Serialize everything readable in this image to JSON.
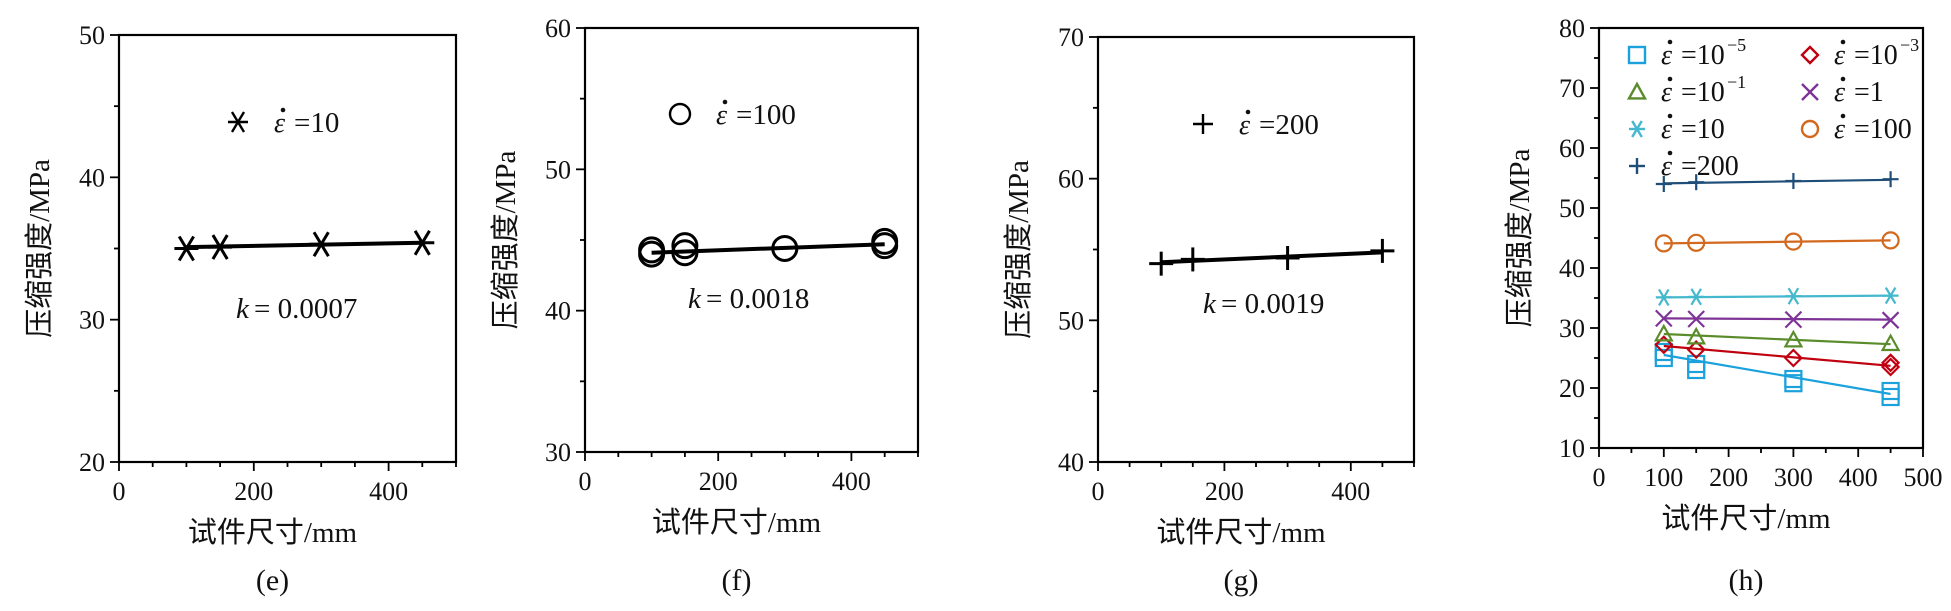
{
  "chart_data": [
    {
      "type": "scatter",
      "panel_label": "(e)",
      "xlabel": "试件尺寸/mm",
      "ylabel": "压缩强度/MPa",
      "xlim": [
        0,
        500
      ],
      "ylim": [
        20,
        50
      ],
      "xticks": [
        0,
        200,
        400
      ],
      "yticks": [
        20,
        30,
        40,
        50
      ],
      "series": [
        {
          "name": "ε̇=10",
          "marker": "asterisk",
          "color": "#000000",
          "x": [
            100,
            150,
            300,
            450
          ],
          "y": [
            35.0,
            35.1,
            35.3,
            35.4
          ],
          "fit": {
            "x": [
              100,
              450
            ],
            "y": [
              35.1,
              35.4
            ]
          }
        }
      ],
      "legend": {
        "marker": "asterisk",
        "label": "=10"
      },
      "annotation": {
        "k_label": "k",
        "k_value": "= 0.0007"
      }
    },
    {
      "type": "scatter",
      "panel_label": "(f)",
      "xlabel": "试件尺寸/mm",
      "ylabel": "压缩强度/MPa",
      "xlim": [
        0,
        500
      ],
      "ylim": [
        30,
        60
      ],
      "xticks": [
        0,
        200,
        400
      ],
      "yticks": [
        30,
        40,
        50,
        60
      ],
      "series": [
        {
          "name": "ε̇=100",
          "marker": "circle",
          "color": "#000000",
          "x": [
            100,
            100,
            150,
            150,
            300,
            450,
            450
          ],
          "y": [
            44.0,
            44.3,
            44.1,
            44.6,
            44.4,
            44.6,
            44.9
          ],
          "fit": {
            "x": [
              100,
              450
            ],
            "y": [
              44.1,
              44.7
            ]
          }
        }
      ],
      "legend": {
        "marker": "circle",
        "label": "=100"
      },
      "annotation": {
        "k_label": "k",
        "k_value": "= 0.0018"
      }
    },
    {
      "type": "scatter",
      "panel_label": "(g)",
      "xlabel": "试件尺寸/mm",
      "ylabel": "压缩强度/MPa",
      "xlim": [
        0,
        500
      ],
      "ylim": [
        40,
        70
      ],
      "xticks": [
        0,
        200,
        400
      ],
      "yticks": [
        40,
        50,
        60,
        70
      ],
      "series": [
        {
          "name": "ε̇=200",
          "marker": "plus",
          "color": "#000000",
          "x": [
            100,
            150,
            300,
            450
          ],
          "y": [
            54.0,
            54.3,
            54.4,
            54.9
          ],
          "fit": {
            "x": [
              100,
              450
            ],
            "y": [
              54.1,
              54.8
            ]
          }
        }
      ],
      "legend": {
        "marker": "plus",
        "label": "=200"
      },
      "annotation": {
        "k_label": "k",
        "k_value": "= 0.0019"
      }
    },
    {
      "type": "scatter",
      "panel_label": "(h)",
      "xlabel": "试件尺寸/mm",
      "ylabel": "压缩强度/MPa",
      "xlim": [
        0,
        500
      ],
      "ylim": [
        10,
        80
      ],
      "xticks": [
        0,
        100,
        200,
        300,
        400,
        500
      ],
      "yticks": [
        10,
        20,
        30,
        40,
        50,
        60,
        70,
        80
      ],
      "series": [
        {
          "name": "ε̇=10⁻⁵",
          "label": "=10",
          "exp": "−5",
          "marker": "square",
          "color": "#1ba1dc",
          "x": [
            100,
            100,
            150,
            150,
            300,
            300,
            450,
            450
          ],
          "y": [
            25.0,
            26.0,
            23.0,
            24.0,
            20.8,
            21.5,
            18.5,
            19.5
          ],
          "fit": {
            "x": [
              100,
              450
            ],
            "y": [
              25.5,
              19.0
            ]
          }
        },
        {
          "name": "ε̇=10⁻³",
          "label": "=10",
          "exp": "−3",
          "marker": "diamond",
          "color": "#c0000e",
          "x": [
            100,
            150,
            300,
            450,
            450
          ],
          "y": [
            27.2,
            26.4,
            25.0,
            23.5,
            24.2
          ],
          "fit": {
            "x": [
              100,
              450
            ],
            "y": [
              27.0,
              23.7
            ]
          }
        },
        {
          "name": "ε̇=10⁻¹",
          "label": "=10",
          "exp": "−1",
          "marker": "triangle",
          "color": "#5a8c2c",
          "x": [
            100,
            150,
            300,
            450
          ],
          "y": [
            29.0,
            28.5,
            28.0,
            27.4
          ],
          "fit": {
            "x": [
              100,
              450
            ],
            "y": [
              29.0,
              27.3
            ]
          }
        },
        {
          "name": "ε̇=1",
          "label": "=1",
          "exp": "",
          "marker": "x",
          "color": "#7e3496",
          "x": [
            100,
            150,
            300,
            450
          ],
          "y": [
            31.6,
            31.5,
            31.4,
            31.3
          ],
          "fit": {
            "x": [
              100,
              450
            ],
            "y": [
              31.6,
              31.4
            ]
          }
        },
        {
          "name": "ε̇=10",
          "label": "=10",
          "exp": "",
          "marker": "asterisk",
          "color": "#44b8cc",
          "x": [
            100,
            150,
            300,
            450
          ],
          "y": [
            35.1,
            35.2,
            35.3,
            35.4
          ],
          "fit": {
            "x": [
              100,
              450
            ],
            "y": [
              35.1,
              35.4
            ]
          }
        },
        {
          "name": "ε̇=100",
          "label": "=100",
          "exp": "",
          "marker": "circle",
          "color": "#d2691e",
          "x": [
            100,
            150,
            300,
            450
          ],
          "y": [
            44.1,
            44.2,
            44.4,
            44.6
          ],
          "fit": {
            "x": [
              100,
              450
            ],
            "y": [
              44.1,
              44.6
            ]
          }
        },
        {
          "name": "ε̇=200",
          "label": "=200",
          "exp": "",
          "marker": "plus",
          "color": "#1f4e79",
          "x": [
            100,
            150,
            300,
            450
          ],
          "y": [
            54.0,
            54.3,
            54.5,
            54.8
          ],
          "fit": {
            "x": [
              100,
              450
            ],
            "y": [
              54.1,
              54.7
            ]
          }
        }
      ],
      "legend_position": "top"
    }
  ]
}
